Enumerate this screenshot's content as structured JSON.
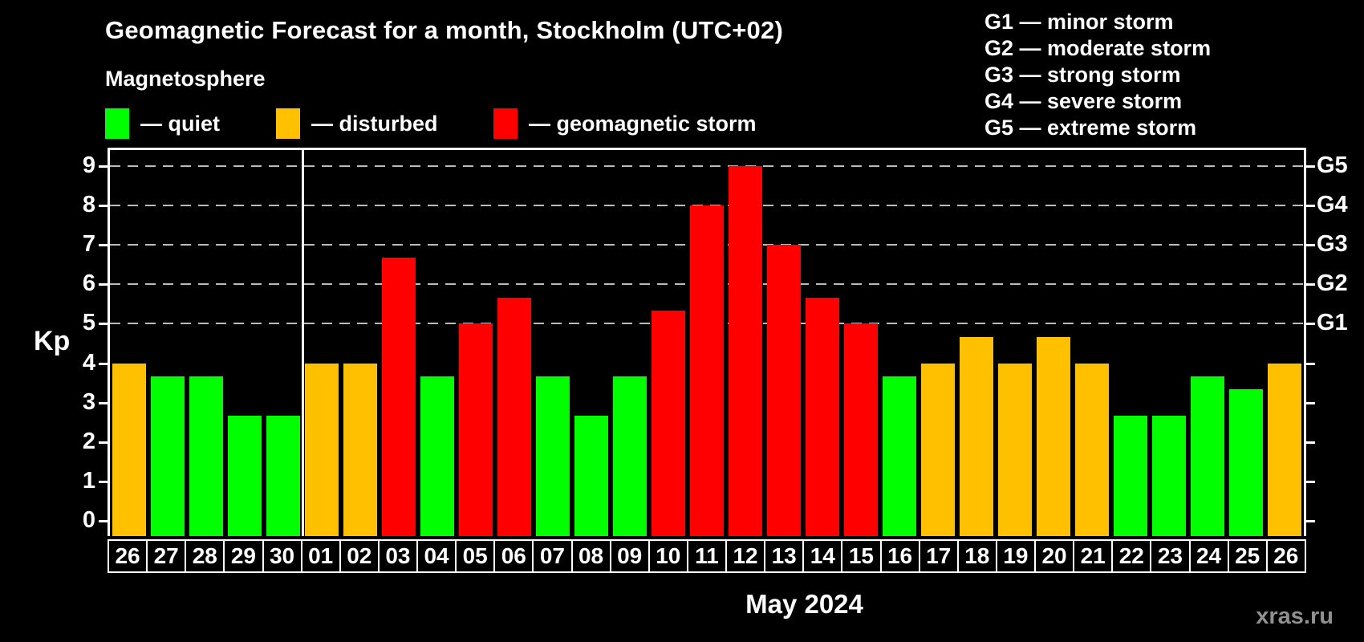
{
  "header": {
    "title": "Geomagnetic Forecast for a month, Stockholm (UTC+02)",
    "subtitle": "Magnetosphere"
  },
  "kp_legend": {
    "items": [
      {
        "status": "quiet",
        "color": "#00FF00",
        "label": "— quiet"
      },
      {
        "status": "disturbed",
        "color": "#FFC000",
        "label": "— disturbed"
      },
      {
        "status": "storm",
        "color": "#FF0000",
        "label": "— geomagnetic storm"
      }
    ]
  },
  "g_legend": {
    "lines": [
      "G1 — minor storm",
      "G2 — moderate storm",
      "G3 — strong storm",
      "G4 — severe storm",
      "G5 — extreme storm"
    ]
  },
  "axes": {
    "y_label": "Kp",
    "x_label": "May 2024",
    "y_ticks": [
      0,
      1,
      2,
      3,
      4,
      5,
      6,
      7,
      8,
      9
    ],
    "right_labels": [
      {
        "kp": 5,
        "label": "G1"
      },
      {
        "kp": 6,
        "label": "G2"
      },
      {
        "kp": 7,
        "label": "G3"
      },
      {
        "kp": 8,
        "label": "G4"
      },
      {
        "kp": 9,
        "label": "G5"
      }
    ]
  },
  "footer": {
    "watermark": "xras.ru"
  },
  "colors": {
    "background": "#000000",
    "axis": "#FFFFFF",
    "grid": "#BBBBBB",
    "quiet": "#00FF00",
    "disturbed": "#FFC000",
    "storm": "#FF0000",
    "watermark": "#909090"
  },
  "chart_data": {
    "type": "bar",
    "title": "Geomagnetic Forecast for a month, Stockholm (UTC+02)",
    "xlabel": "May 2024",
    "ylabel": "Kp",
    "ylim": [
      0,
      9
    ],
    "grid": "dashed horizontal at Kp 5-9 only",
    "legend_position": "top-left",
    "divider_after_index": 4,
    "categories": [
      "26",
      "27",
      "28",
      "29",
      "30",
      "01",
      "02",
      "03",
      "04",
      "05",
      "06",
      "07",
      "08",
      "09",
      "10",
      "11",
      "12",
      "13",
      "14",
      "15",
      "16",
      "17",
      "18",
      "19",
      "20",
      "21",
      "22",
      "23",
      "24",
      "25",
      "26"
    ],
    "values": [
      4.0,
      3.67,
      3.67,
      2.67,
      2.67,
      4.0,
      4.0,
      6.67,
      3.67,
      5.0,
      5.67,
      3.67,
      2.67,
      3.67,
      5.33,
      8.0,
      9.0,
      7.0,
      5.67,
      5.0,
      3.67,
      4.0,
      4.67,
      4.0,
      4.67,
      4.0,
      2.67,
      2.67,
      3.67,
      3.33,
      4.0
    ],
    "statuses": [
      "disturbed",
      "quiet",
      "quiet",
      "quiet",
      "quiet",
      "disturbed",
      "disturbed",
      "storm",
      "quiet",
      "storm",
      "storm",
      "quiet",
      "quiet",
      "quiet",
      "storm",
      "storm",
      "storm",
      "storm",
      "storm",
      "storm",
      "quiet",
      "disturbed",
      "disturbed",
      "disturbed",
      "disturbed",
      "disturbed",
      "quiet",
      "quiet",
      "quiet",
      "quiet",
      "disturbed"
    ],
    "thresholds": {
      "disturbed_min": 4,
      "storm_min": 5
    }
  }
}
